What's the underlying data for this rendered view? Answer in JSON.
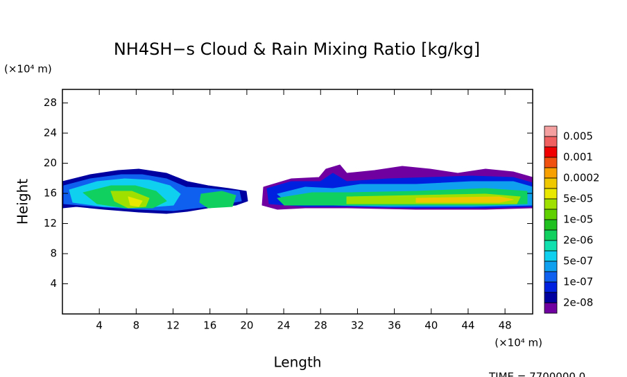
{
  "chart_data": {
    "type": "contour",
    "title": "NH4SH−s Cloud & Rain Mixing Ratio [kg/kg]",
    "x_label": "Length",
    "y_label": "Height",
    "x_unit": "(×10⁴ m)",
    "y_unit": "(×10⁴ m)",
    "xlim": [
      0,
      51
    ],
    "ylim": [
      0,
      29.8
    ],
    "xticks": [
      4,
      8,
      12,
      16,
      20,
      24,
      28,
      32,
      36,
      40,
      44,
      48
    ],
    "yticks": [
      4,
      8,
      12,
      16,
      20,
      24,
      28
    ],
    "colorbar": {
      "levels": [
        "0.005",
        "0.001",
        "0.0002",
        "5e-05",
        "1e-05",
        "2e-06",
        "5e-07",
        "1e-07",
        "2e-08"
      ],
      "colors": [
        "#f4a0a0",
        "#f06060",
        "#f00000",
        "#f05010",
        "#f8a000",
        "#f0c800",
        "#e8e800",
        "#a0e000",
        "#60d000",
        "#20c020",
        "#10d060",
        "#10e0b0",
        "#10d0f0",
        "#10a0f0",
        "#1060f0",
        "#0020e0",
        "#0000a0",
        "#7000a0"
      ]
    },
    "footer": "TIME = 7700000.0"
  }
}
